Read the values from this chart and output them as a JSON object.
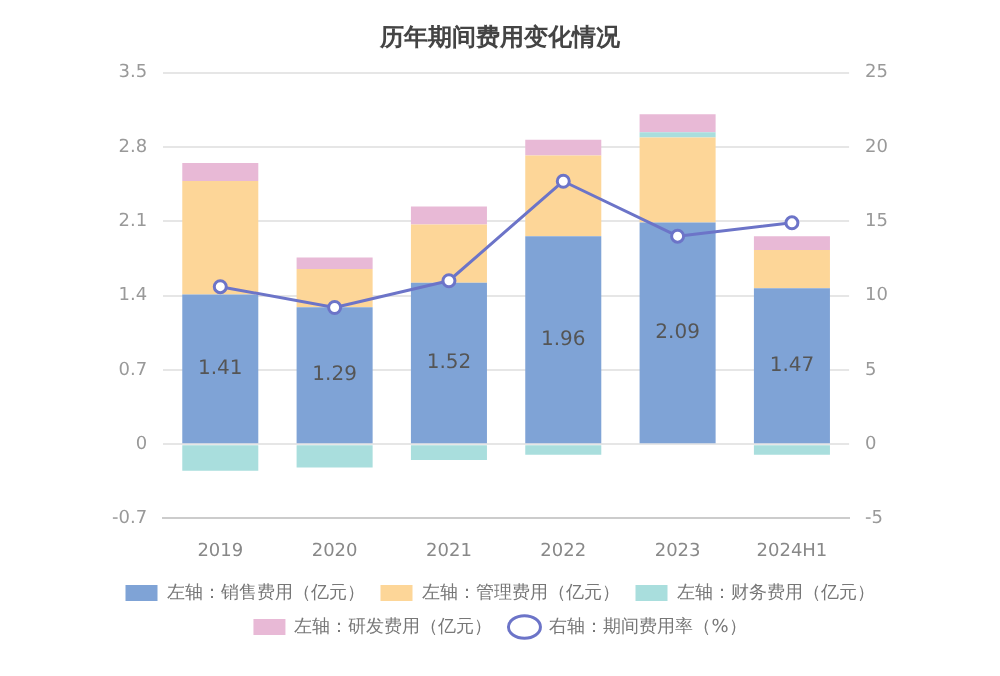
{
  "chart_data": {
    "type": "bar",
    "title": "历年期间费用变化情况",
    "stacked": true,
    "categories": [
      "2019",
      "2020",
      "2021",
      "2022",
      "2023",
      "2024H1"
    ],
    "series": [
      {
        "name": "左轴：销售费用（亿元）",
        "color": "#7fa3d6",
        "values": [
          1.41,
          1.29,
          1.52,
          1.96,
          2.09,
          1.47
        ],
        "value_labels": [
          "1.41",
          "1.29",
          "1.52",
          "1.96",
          "2.09",
          "1.47"
        ]
      },
      {
        "name": "左轴：管理费用（亿元）",
        "color": "#fdd698",
        "values": [
          1.07,
          0.36,
          0.55,
          0.76,
          0.8,
          0.36
        ]
      },
      {
        "name": "左轴：财务费用（亿元）",
        "color": "#a9dedd",
        "values": [
          -0.25,
          -0.22,
          -0.15,
          -0.1,
          0.05,
          -0.1
        ]
      },
      {
        "name": "左轴：研发费用（亿元）",
        "color": "#e8b9d6",
        "values": [
          0.17,
          0.11,
          0.17,
          0.15,
          0.17,
          0.13
        ]
      },
      {
        "name": "右轴：期间费用率（%）",
        "type": "line",
        "axis": "y2",
        "marker": "circle",
        "color": "#6c74c8",
        "values": [
          10.6,
          9.2,
          11.0,
          17.7,
          14.0,
          14.9
        ]
      }
    ],
    "ylim": [
      -0.7,
      3.5
    ],
    "yticks": [
      -0.7,
      0,
      0.7,
      1.4,
      2.1,
      2.8,
      3.5
    ],
    "y2lim": [
      -5,
      25
    ],
    "y2ticks": [
      -5,
      0,
      5,
      10,
      15,
      20,
      25
    ],
    "grid": "y",
    "legend": "bottom"
  }
}
